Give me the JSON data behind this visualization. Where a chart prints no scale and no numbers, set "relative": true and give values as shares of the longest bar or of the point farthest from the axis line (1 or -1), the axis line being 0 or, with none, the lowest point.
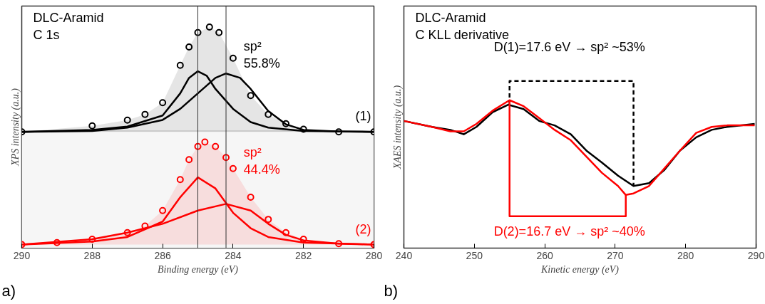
{
  "chart_data": [
    {
      "type": "line",
      "title": "DLC-Aramid\nC 1s",
      "xlabel": "Binding energy (eV)",
      "ylabel": "XPS intensity (a.u.)",
      "relative": true,
      "xlim": [
        290,
        280
      ],
      "xticks": [
        290,
        288,
        286,
        284,
        282,
        280
      ],
      "series": [
        {
          "name": "(1)",
          "type": "area",
          "marker": "circle",
          "color": "#000000",
          "x": [
            290,
            288,
            287,
            286.5,
            286,
            285.5,
            285.25,
            285,
            284.67,
            284.4,
            284,
            283.5,
            283,
            282.5,
            282,
            281,
            280
          ],
          "values": [
            0.526,
            0.553,
            0.579,
            0.605,
            0.658,
            0.827,
            0.91,
            0.975,
            1.0,
            0.975,
            0.859,
            0.69,
            0.605,
            0.563,
            0.538,
            0.526,
            0.526
          ]
        },
        {
          "color": "#000000",
          "x": [
            290,
            288,
            287,
            286,
            285.5,
            285.25,
            285,
            284.75,
            284.5,
            284,
            283.5,
            283,
            282,
            280
          ],
          "values": [
            0.526,
            0.535,
            0.55,
            0.6,
            0.7,
            0.77,
            0.8,
            0.78,
            0.72,
            0.63,
            0.57,
            0.545,
            0.53,
            0.526
          ]
        },
        {
          "color": "#000000",
          "x": [
            290,
            288,
            287,
            286,
            285.5,
            285,
            284.5,
            284.2,
            283.8,
            283.5,
            283,
            282.5,
            282,
            281,
            280
          ],
          "values": [
            0.526,
            0.53,
            0.545,
            0.58,
            0.63,
            0.7,
            0.77,
            0.79,
            0.77,
            0.72,
            0.62,
            0.56,
            0.535,
            0.527,
            0.526
          ]
        },
        {
          "name": "(2)",
          "type": "area",
          "marker": "circle",
          "color": "#ff0000",
          "x": [
            290,
            289,
            288,
            287,
            286.5,
            286,
            285.5,
            285.25,
            285,
            284.8,
            284.5,
            284.2,
            284,
            283.5,
            283,
            282.5,
            282,
            281,
            280
          ],
          "values": [
            0.016,
            0.025,
            0.04,
            0.07,
            0.1,
            0.17,
            0.31,
            0.4,
            0.46,
            0.48,
            0.46,
            0.41,
            0.36,
            0.23,
            0.13,
            0.07,
            0.04,
            0.02,
            0.016
          ]
        },
        {
          "color": "#ff0000",
          "x": [
            290,
            288,
            287,
            286,
            285.5,
            285,
            284.5,
            284,
            283.5,
            283,
            282,
            280
          ],
          "values": [
            0.016,
            0.03,
            0.05,
            0.12,
            0.23,
            0.32,
            0.27,
            0.16,
            0.09,
            0.05,
            0.025,
            0.016
          ]
        },
        {
          "color": "#ff0000",
          "x": [
            290,
            288,
            287,
            286,
            285,
            284.2,
            283.5,
            283,
            282.5,
            282,
            281,
            280
          ],
          "values": [
            0.016,
            0.04,
            0.07,
            0.11,
            0.17,
            0.2,
            0.17,
            0.11,
            0.06,
            0.035,
            0.02,
            0.016
          ]
        }
      ],
      "ref_lines": [
        {
          "axis": "x",
          "value": 285.0,
          "color": "#333333"
        },
        {
          "axis": "x",
          "value": 284.2,
          "color": "#333333"
        }
      ],
      "bands": [
        {
          "axis": "y",
          "from": 0,
          "to": 0.53,
          "color": "#f6f6f6"
        }
      ],
      "annotations": [
        "sp²\n55.8%",
        "sp²\n44.4%",
        "a)"
      ]
    },
    {
      "type": "line",
      "title": "DLC-Aramid\nC KLL derivative",
      "xlabel": "Kinetic energy (eV)",
      "ylabel": "XAES intensity (a.u.)",
      "relative": true,
      "xlim": [
        240,
        290
      ],
      "xticks": [
        240,
        250,
        260,
        270,
        280,
        290
      ],
      "series": [
        {
          "color": "#000000",
          "x": [
            240,
            244,
            246.6,
            248.5,
            250.3,
            252.6,
            254.8,
            257,
            259.2,
            261.4,
            263.7,
            265.9,
            268.1,
            270.4,
            272.6,
            274.8,
            277,
            279.2,
            281.5,
            283.7,
            285.9,
            289.8
          ],
          "values": [
            0.705,
            0.661,
            0.639,
            0.606,
            0.661,
            0.77,
            0.825,
            0.792,
            0.705,
            0.672,
            0.606,
            0.486,
            0.398,
            0.3,
            0.224,
            0.245,
            0.344,
            0.486,
            0.584,
            0.639,
            0.661,
            0.683
          ]
        },
        {
          "color": "#ff0000",
          "x": [
            240,
            244,
            246.6,
            248.5,
            250.3,
            252.6,
            255,
            257,
            259.2,
            261.4,
            263.7,
            265.9,
            268.1,
            270.4,
            271.5,
            272.6,
            274.8,
            277,
            279.2,
            281.5,
            283.7,
            285.9,
            289.8
          ],
          "values": [
            0.705,
            0.661,
            0.628,
            0.628,
            0.683,
            0.781,
            0.858,
            0.814,
            0.726,
            0.639,
            0.562,
            0.442,
            0.322,
            0.224,
            0.158,
            0.169,
            0.224,
            0.355,
            0.486,
            0.617,
            0.661,
            0.672,
            0.672
          ]
        },
        {
          "line_style": "dashed",
          "color": "#000000",
          "x": [
            255,
            255,
            272.6,
            272.6
          ],
          "values": [
            0.825,
            1.0,
            1.0,
            0.224
          ]
        },
        {
          "color": "#ff0000",
          "x": [
            255,
            255,
            271.5,
            271.5
          ],
          "values": [
            0.858,
            0.0,
            0.0,
            0.158
          ]
        }
      ],
      "annotations": [
        "D(1)=17.6 eV → sp² ~53%",
        "D(2)=16.7 eV → sp² ~40%",
        "b)"
      ]
    }
  ]
}
